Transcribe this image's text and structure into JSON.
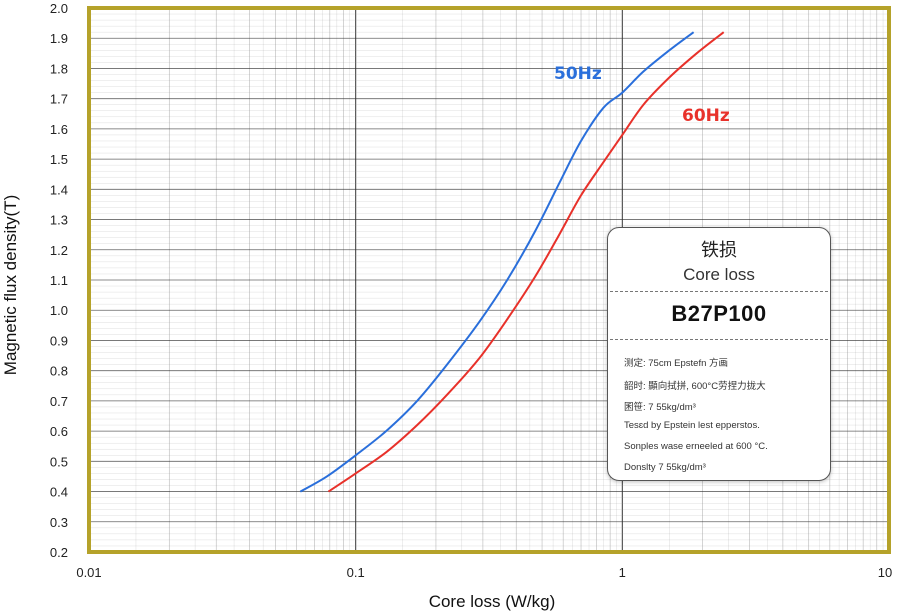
{
  "chart_data": {
    "type": "line",
    "xscale": "log",
    "xlim": [
      0.01,
      10
    ],
    "ylim": [
      0.2,
      2.0
    ],
    "x_ticks": [
      "0.01",
      "0.1",
      "1",
      "10"
    ],
    "y_ticks": [
      "0.2",
      "0.3",
      "0.4",
      "0.5",
      "0.6",
      "0.7",
      "0.8",
      "0.9",
      "1.0",
      "1.1",
      "1.2",
      "1.3",
      "1.4",
      "1.5",
      "1.6",
      "1.7",
      "1.8",
      "1.9",
      "2.0"
    ],
    "xlabel": "Core loss (W/kg)",
    "ylabel": "Magnetic flux density(T)",
    "grid": true,
    "series": [
      {
        "name": "50Hz",
        "color": "#2a6fdb",
        "points": [
          [
            0.062,
            0.4
          ],
          [
            0.078,
            0.45
          ],
          [
            0.1,
            0.52
          ],
          [
            0.13,
            0.6
          ],
          [
            0.17,
            0.7
          ],
          [
            0.22,
            0.82
          ],
          [
            0.29,
            0.96
          ],
          [
            0.37,
            1.1
          ],
          [
            0.47,
            1.26
          ],
          [
            0.58,
            1.42
          ],
          [
            0.7,
            1.56
          ],
          [
            0.85,
            1.67
          ],
          [
            1.0,
            1.72
          ],
          [
            1.2,
            1.79
          ],
          [
            1.5,
            1.86
          ],
          [
            1.85,
            1.92
          ]
        ]
      },
      {
        "name": "60Hz",
        "color": "#e8312a",
        "points": [
          [
            0.079,
            0.4
          ],
          [
            0.1,
            0.46
          ],
          [
            0.13,
            0.53
          ],
          [
            0.17,
            0.62
          ],
          [
            0.22,
            0.72
          ],
          [
            0.29,
            0.84
          ],
          [
            0.37,
            0.97
          ],
          [
            0.47,
            1.11
          ],
          [
            0.58,
            1.25
          ],
          [
            0.7,
            1.38
          ],
          [
            0.85,
            1.49
          ],
          [
            1.0,
            1.58
          ],
          [
            1.2,
            1.68
          ],
          [
            1.5,
            1.77
          ],
          [
            1.9,
            1.85
          ],
          [
            2.4,
            1.92
          ]
        ]
      }
    ]
  },
  "info_box": {
    "title_cn": "铁损",
    "title_en": "Core loss",
    "grade": "B27P100",
    "lines": [
      "测定: 75cm Epstefn 方画",
      "韶时: 顯向拭拼, 600°C劳捏力拢大",
      "囷笹: 7 55kg/dm³",
      "Tesɛd by Epstein lest epperstos.",
      "Sonples wase erneeled at 600 °C.",
      "Donslty 7 55kg/dm³"
    ]
  },
  "colors": {
    "frame": "#b5a22a",
    "grid_major": "#333333",
    "grid_minor": "#9a9a9a"
  }
}
